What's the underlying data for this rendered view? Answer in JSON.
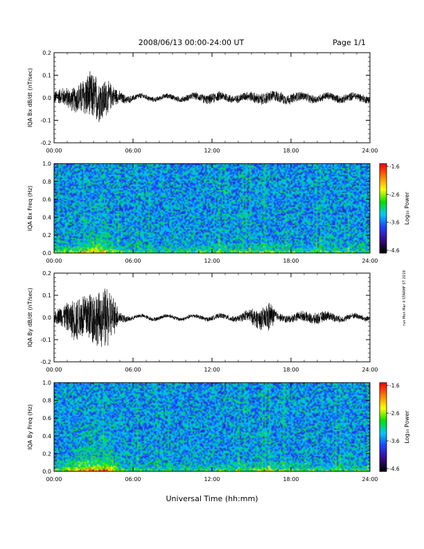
{
  "header": {
    "title": "2008/06/13  00:00-24:00 UT",
    "page": "Page 1/1"
  },
  "footer": {
    "xlabel": "Universal Time (hh:mm)"
  },
  "side_note": "run Mon Mar 4 STARMF ST 2019",
  "chart_data": [
    {
      "type": "line",
      "ylabel": "IQA Bx dB/dt (nT/sec)",
      "xlim": [
        0,
        24
      ],
      "ylim": [
        -0.2,
        0.2
      ],
      "yticks": [
        "0.2",
        "0.1",
        "0.0",
        "-0.1",
        "-0.2"
      ],
      "xticks": [
        "00:00",
        "06:00",
        "12:00",
        "18:00",
        "24:00"
      ],
      "envelope": {
        "hours": [
          0,
          0.5,
          1,
          1.5,
          2,
          2.5,
          3,
          3.5,
          4,
          4.5,
          5,
          5.5,
          6,
          8,
          10,
          12,
          14,
          16,
          18,
          20,
          22,
          24
        ],
        "amplitude": [
          0.03,
          0.04,
          0.05,
          0.06,
          0.08,
          0.11,
          0.12,
          0.11,
          0.09,
          0.05,
          0.03,
          0.02,
          0.015,
          0.012,
          0.015,
          0.025,
          0.02,
          0.03,
          0.025,
          0.02,
          0.02,
          0.02
        ]
      }
    },
    {
      "type": "heatmap",
      "ylabel": "IQA Bx Freq (Hz)",
      "xlim": [
        0,
        24
      ],
      "ylim": [
        0,
        1.0
      ],
      "yticks": [
        "1.0",
        "0.8",
        "0.6",
        "0.4",
        "0.2",
        "0.0"
      ],
      "xticks": [
        "00:00",
        "06:00",
        "12:00",
        "18:00",
        "24:00"
      ],
      "colorbar": {
        "label": "Log₁₀ Power",
        "range": [
          -4.6,
          -1.6
        ],
        "ticks": [
          "-1.6",
          "-2.6",
          "-3.6",
          "-4.6"
        ],
        "colors": [
          "#000000",
          "#3a0a8a",
          "#2040ff",
          "#00c8ff",
          "#00e000",
          "#ffff00",
          "#ff8000",
          "#ff0000"
        ]
      }
    },
    {
      "type": "line",
      "ylabel": "IQA By dB/dt (nT/sec)",
      "xlim": [
        0,
        24
      ],
      "ylim": [
        -0.2,
        0.2
      ],
      "yticks": [
        "0.2",
        "0.1",
        "0.0",
        "-0.1",
        "-0.2"
      ],
      "xticks": [
        "00:00",
        "06:00",
        "12:00",
        "18:00",
        "24:00"
      ],
      "envelope": {
        "hours": [
          0,
          0.5,
          1,
          1.5,
          2,
          2.5,
          3,
          3.5,
          4,
          4.5,
          5,
          5.5,
          6,
          8,
          10,
          12,
          14,
          16,
          16.3,
          17,
          18,
          19,
          20,
          22,
          24
        ],
        "amplitude": [
          0.03,
          0.05,
          0.07,
          0.1,
          0.12,
          0.13,
          0.14,
          0.13,
          0.16,
          0.1,
          0.03,
          0.015,
          0.01,
          0.01,
          0.01,
          0.012,
          0.015,
          0.06,
          0.08,
          0.02,
          0.02,
          0.025,
          0.03,
          0.015,
          0.015
        ]
      }
    },
    {
      "type": "heatmap",
      "ylabel": "IQA By Freq (Hz)",
      "xlim": [
        0,
        24
      ],
      "ylim": [
        0,
        1.0
      ],
      "yticks": [
        "1.0",
        "0.8",
        "0.6",
        "0.4",
        "0.2",
        "0.0"
      ],
      "xticks": [
        "00:00",
        "06:00",
        "12:00",
        "18:00",
        "24:00"
      ],
      "colorbar": {
        "label": "Log₁₀ Power",
        "range": [
          -4.6,
          -1.6
        ],
        "ticks": [
          "-1.6",
          "-2.6",
          "-3.6",
          "-4.6"
        ],
        "colors": [
          "#000000",
          "#3a0a8a",
          "#2040ff",
          "#00c8ff",
          "#00e000",
          "#ffff00",
          "#ff8000",
          "#ff0000"
        ]
      }
    }
  ]
}
